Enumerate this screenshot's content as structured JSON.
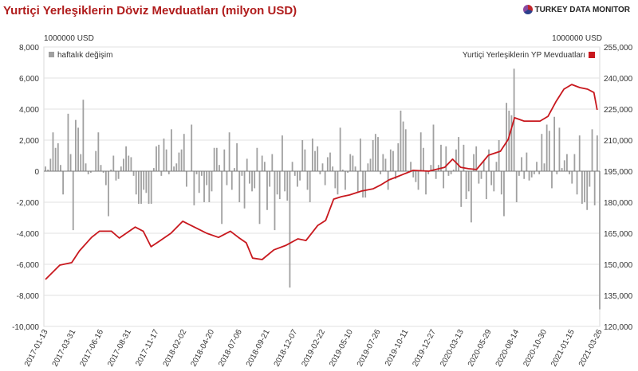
{
  "header": {
    "title": "Yurtiçi Yerleşiklerin Döviz Mevduatları (milyon USD)",
    "brand": "TURKEY DATA MONITOR"
  },
  "chart_data": {
    "type": "bar+line",
    "title": "Yurtiçi Yerleşiklerin Döviz Mevduatları (milyon USD)",
    "left_unit": "1000000 USD",
    "right_unit": "1000000 USD",
    "ylim_left": [
      -10000,
      8000
    ],
    "ylim_right": [
      120000,
      255000
    ],
    "left_ticks": [
      "8,000",
      "6,000",
      "4,000",
      "2,000",
      "0",
      "-2,000",
      "-4,000",
      "-6,000",
      "-8,000",
      "-10,000"
    ],
    "right_ticks": [
      "255,000",
      "240,000",
      "225,000",
      "210,000",
      "195,000",
      "180,000",
      "165,000",
      "150,000",
      "135,000",
      "120,000"
    ],
    "x_ticks": [
      "2017-01-13",
      "2017-03-31",
      "2017-06-16",
      "2017-08-31",
      "2017-11-17",
      "2018-02-02",
      "2018-04-20",
      "2018-07-06",
      "2018-09-21",
      "2018-12-07",
      "2019-02-22",
      "2019-05-10",
      "2019-07-26",
      "2019-10-11",
      "2019-12-27",
      "2020-03-13",
      "2020-05-29",
      "2020-08-14",
      "2020-10-30",
      "2021-01-15",
      "2021-03-26"
    ],
    "grid": true,
    "legend": [
      {
        "name": "haftalık değişim",
        "color": "#a0a0a0",
        "placement": "top-left"
      },
      {
        "name": "Yurtiçi Yerleşiklerin YP Mevduatları",
        "color": "#c8181e",
        "placement": "top-right"
      }
    ],
    "series": [
      {
        "name": "haftalık değişim",
        "axis": "left",
        "kind": "bar",
        "values": [
          300,
          100,
          800,
          2500,
          1500,
          1800,
          400,
          -1500,
          0,
          3700,
          1100,
          -3800,
          3300,
          2800,
          1100,
          4600,
          500,
          -200,
          -100,
          0,
          1300,
          2500,
          400,
          -100,
          -900,
          -2900,
          100,
          1000,
          -600,
          -500,
          300,
          800,
          1600,
          1000,
          900,
          -300,
          -1500,
          -2100,
          -2100,
          -1200,
          -1400,
          -2100,
          -2100,
          200,
          1600,
          1700,
          -300,
          2100,
          1400,
          -200,
          2700,
          300,
          500,
          1200,
          1400,
          2400,
          -1000,
          0,
          3000,
          -2200,
          -200,
          -1400,
          -300,
          -2000,
          -900,
          -2000,
          -1300,
          1500,
          1500,
          400,
          -3400,
          1400,
          -900,
          2500,
          -1200,
          200,
          1800,
          -2000,
          -300,
          -2400,
          800,
          -800,
          -1300,
          -1100,
          1500,
          -3400,
          1000,
          600,
          -2500,
          -1000,
          1100,
          -3800,
          -1500,
          -1800,
          2300,
          -1300,
          -1900,
          -7500,
          600,
          -300,
          -1000,
          -600,
          2000,
          1400,
          -1200,
          -2000,
          2100,
          1300,
          1600,
          -200,
          500,
          -900,
          900,
          1200,
          300,
          -1100,
          -1500,
          2800,
          100,
          -1200,
          -100,
          1100,
          1000,
          300,
          -1400,
          2100,
          -1700,
          -1700,
          500,
          800,
          2000,
          2400,
          2200,
          -200,
          1100,
          800,
          -1200,
          1400,
          1300,
          -500,
          1800,
          3900,
          3200,
          2700,
          -100,
          600,
          -400,
          -700,
          -1200,
          2500,
          1500,
          -1500,
          -200,
          400,
          3000,
          -500,
          400,
          1700,
          -1100,
          1600,
          -300,
          -200,
          100,
          1400,
          2200,
          -2300,
          1700,
          -1800,
          -1300,
          -3300,
          1100,
          1600,
          -800,
          -500,
          700,
          -1800,
          1400,
          -900,
          -1300,
          600,
          2000,
          -1500,
          -2900,
          4400,
          3900,
          3600,
          6600,
          -2000,
          -300,
          900,
          -500,
          1200,
          -600,
          -400,
          -200,
          600,
          -200,
          2400,
          500,
          3000,
          2600,
          -1100,
          3500,
          -200,
          2800,
          200,
          700,
          1100,
          -200,
          -800,
          1100,
          -1500,
          2300,
          -2100,
          -2000,
          -2500,
          -1000,
          2700,
          -2200,
          2300,
          -8900
        ]
      },
      {
        "name": "Yurtiçi Yerleşiklerin YP Mevduatları",
        "axis": "right",
        "kind": "line",
        "points": [
          [
            0,
            142700
          ],
          [
            5.7,
            149600
          ],
          [
            10.4,
            150800
          ],
          [
            13.5,
            156500
          ],
          [
            18.3,
            163000
          ],
          [
            21.4,
            166000
          ],
          [
            26.2,
            166000
          ],
          [
            29.3,
            162700
          ],
          [
            32.5,
            165400
          ],
          [
            35.6,
            168000
          ],
          [
            38.8,
            166000
          ],
          [
            41.9,
            158500
          ],
          [
            45,
            161000
          ],
          [
            49.8,
            165000
          ],
          [
            54.5,
            170800
          ],
          [
            57.7,
            168800
          ],
          [
            64,
            165000
          ],
          [
            68.7,
            163000
          ],
          [
            73.4,
            166000
          ],
          [
            76.6,
            163000
          ],
          [
            79.7,
            160400
          ],
          [
            82.2,
            153000
          ],
          [
            86,
            152300
          ],
          [
            90.7,
            157000
          ],
          [
            95.5,
            159200
          ],
          [
            100.2,
            162300
          ],
          [
            103.4,
            161500
          ],
          [
            108.1,
            168800
          ],
          [
            111.2,
            171200
          ],
          [
            114.4,
            181500
          ],
          [
            117.5,
            182700
          ],
          [
            120.7,
            183500
          ],
          [
            125.4,
            185400
          ],
          [
            130.1,
            186500
          ],
          [
            133.3,
            188500
          ],
          [
            136.4,
            190800
          ],
          [
            139.6,
            192300
          ],
          [
            145.9,
            195400
          ],
          [
            152.2,
            195000
          ],
          [
            158.5,
            196900
          ],
          [
            161.6,
            200800
          ],
          [
            164.8,
            196900
          ],
          [
            167.9,
            196200
          ],
          [
            171.1,
            195800
          ],
          [
            175.8,
            202700
          ],
          [
            180.6,
            204600
          ],
          [
            183.7,
            210400
          ],
          [
            186.2,
            220800
          ],
          [
            190,
            219200
          ],
          [
            196.3,
            219200
          ],
          [
            199.5,
            221500
          ],
          [
            202.6,
            228500
          ],
          [
            205.8,
            234600
          ],
          [
            208.9,
            236900
          ],
          [
            212.1,
            235400
          ],
          [
            215.2,
            234600
          ],
          [
            217.7,
            233000
          ],
          [
            219,
            224600
          ]
        ]
      }
    ]
  }
}
